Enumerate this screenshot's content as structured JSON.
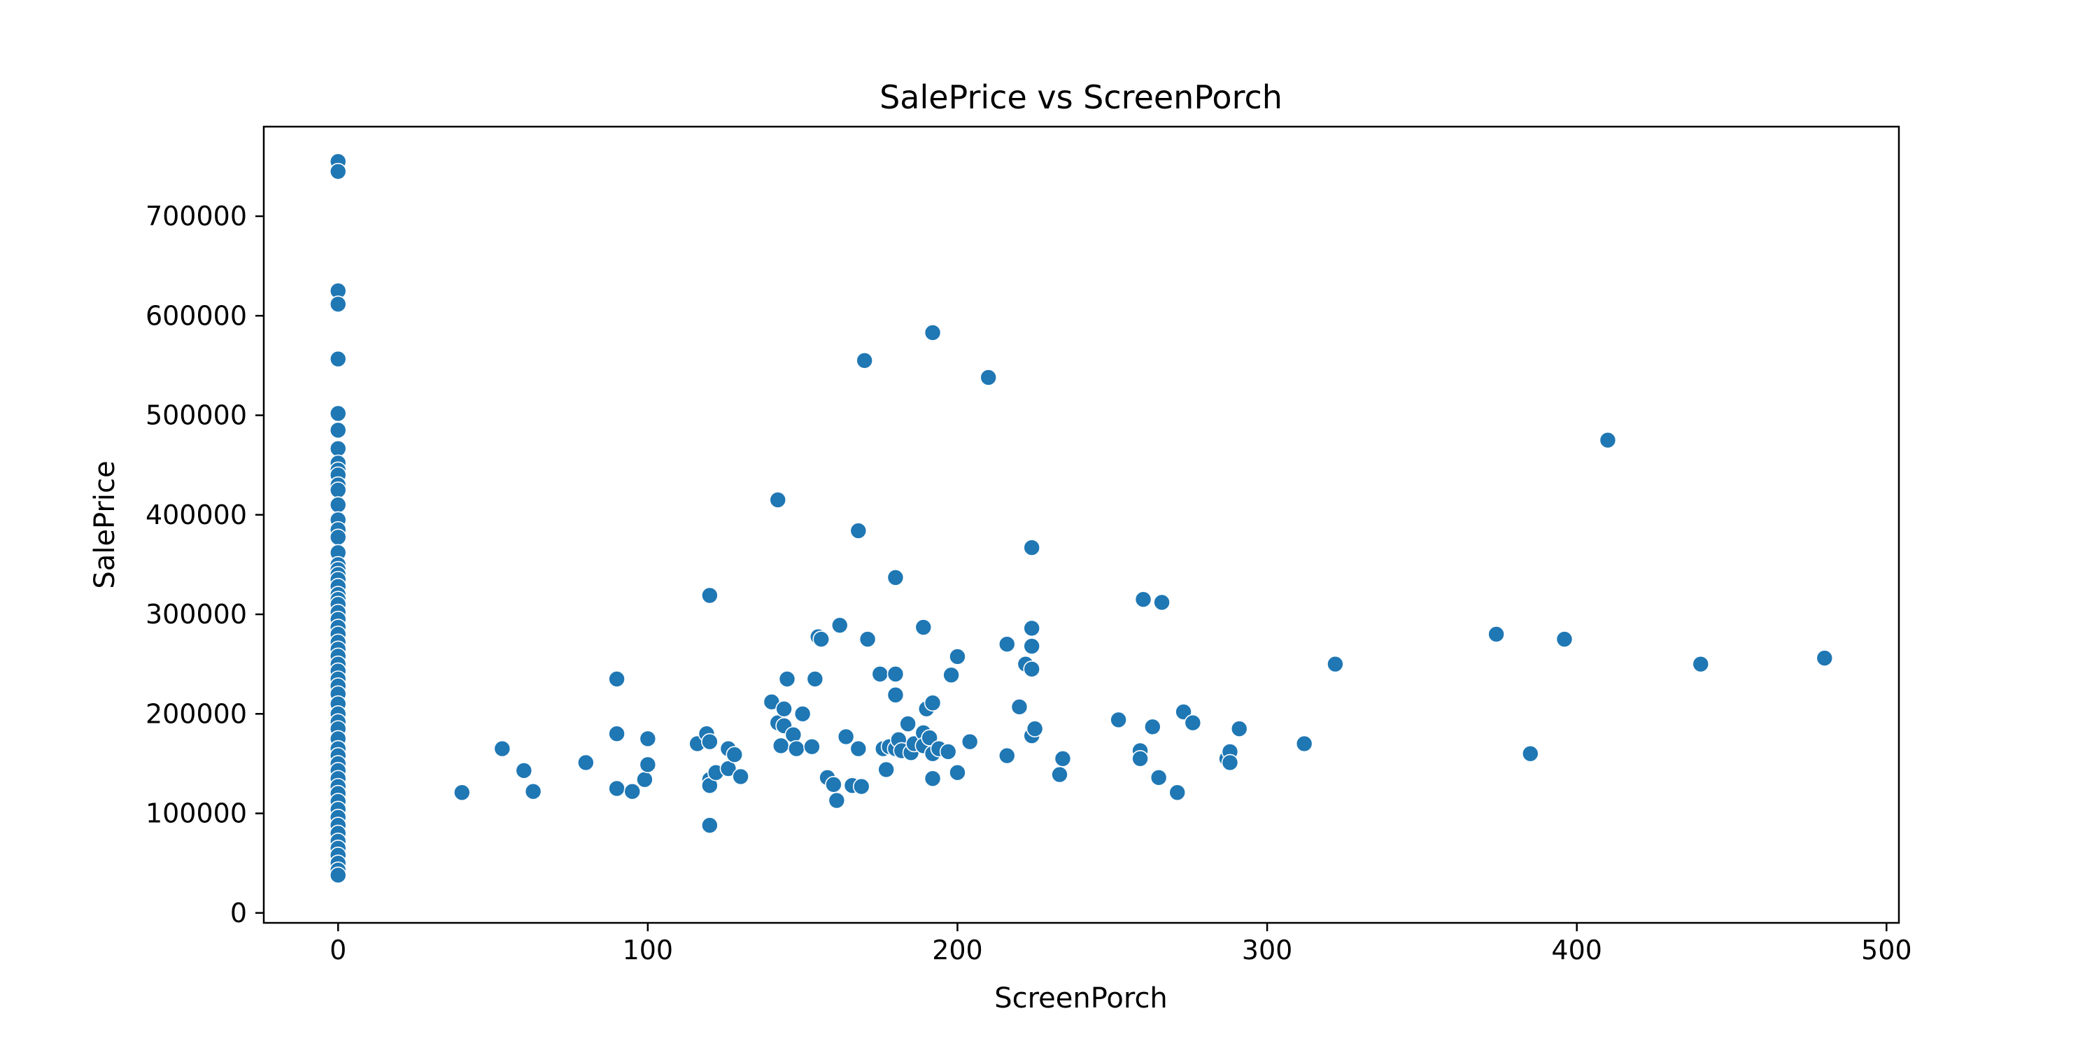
{
  "chart_data": {
    "type": "scatter",
    "title": "SalePrice vs ScreenPorch",
    "xlabel": "ScreenPorch",
    "ylabel": "SalePrice",
    "xlim": [
      -24,
      504
    ],
    "ylim": [
      -10000,
      790000
    ],
    "xticks": [
      0,
      100,
      200,
      300,
      400,
      500
    ],
    "xtick_labels": [
      "0",
      "100",
      "200",
      "300",
      "400",
      "500"
    ],
    "yticks": [
      0,
      100000,
      200000,
      300000,
      400000,
      500000,
      600000,
      700000
    ],
    "ytick_labels": [
      "0",
      "100000",
      "200000",
      "300000",
      "400000",
      "500000",
      "600000",
      "700000"
    ],
    "grid": false,
    "point_color": "#1f77b4",
    "point_edge_color": "#ffffff",
    "series": [
      {
        "points": [
          [
            0,
            755000
          ],
          [
            0,
            745000
          ],
          [
            0,
            625000
          ],
          [
            0,
            611657
          ],
          [
            0,
            556581
          ],
          [
            0,
            501837
          ],
          [
            0,
            485000
          ],
          [
            0,
            466500
          ],
          [
            0,
            451950
          ],
          [
            0,
            445000
          ],
          [
            0,
            440000
          ],
          [
            0,
            430000
          ],
          [
            0,
            424870
          ],
          [
            0,
            410000
          ],
          [
            0,
            395000
          ],
          [
            0,
            385000
          ],
          [
            0,
            377500
          ],
          [
            0,
            362000
          ],
          [
            0,
            350000
          ],
          [
            0,
            345000
          ],
          [
            0,
            340000
          ],
          [
            0,
            335000
          ],
          [
            0,
            328000
          ],
          [
            0,
            320000
          ],
          [
            0,
            315000
          ],
          [
            0,
            310000
          ],
          [
            0,
            302000
          ],
          [
            0,
            295000
          ],
          [
            0,
            287000
          ],
          [
            0,
            280000
          ],
          [
            0,
            272000
          ],
          [
            0,
            265000
          ],
          [
            0,
            258000
          ],
          [
            0,
            250000
          ],
          [
            0,
            243000
          ],
          [
            0,
            235000
          ],
          [
            0,
            228000
          ],
          [
            0,
            220000
          ],
          [
            0,
            210000
          ],
          [
            0,
            200000
          ],
          [
            0,
            192000
          ],
          [
            0,
            185000
          ],
          [
            0,
            175000
          ],
          [
            0,
            165000
          ],
          [
            0,
            158000
          ],
          [
            0,
            150000
          ],
          [
            0,
            143000
          ],
          [
            0,
            135000
          ],
          [
            0,
            127000
          ],
          [
            0,
            120000
          ],
          [
            0,
            112000
          ],
          [
            0,
            104000
          ],
          [
            0,
            96000
          ],
          [
            0,
            88000
          ],
          [
            0,
            80000
          ],
          [
            0,
            72000
          ],
          [
            0,
            65000
          ],
          [
            0,
            58000
          ],
          [
            0,
            50000
          ],
          [
            0,
            43000
          ],
          [
            0,
            37900
          ],
          [
            40,
            121000
          ],
          [
            53,
            165000
          ],
          [
            60,
            143000
          ],
          [
            63,
            122000
          ],
          [
            80,
            151000
          ],
          [
            90,
            235000
          ],
          [
            90,
            180000
          ],
          [
            90,
            125000
          ],
          [
            95,
            122000
          ],
          [
            99,
            134000
          ],
          [
            100,
            175000
          ],
          [
            100,
            149000
          ],
          [
            116,
            170000
          ],
          [
            119,
            180000
          ],
          [
            120,
            319000
          ],
          [
            120,
            172000
          ],
          [
            120,
            134000
          ],
          [
            120,
            128000
          ],
          [
            120,
            88000
          ],
          [
            122,
            141000
          ],
          [
            126,
            165000
          ],
          [
            126,
            145000
          ],
          [
            128,
            159000
          ],
          [
            130,
            137000
          ],
          [
            140,
            212000
          ],
          [
            142,
            415000
          ],
          [
            142,
            191000
          ],
          [
            143,
            168000
          ],
          [
            144,
            205000
          ],
          [
            144,
            188000
          ],
          [
            145,
            235000
          ],
          [
            147,
            179000
          ],
          [
            148,
            165000
          ],
          [
            150,
            200000
          ],
          [
            153,
            167000
          ],
          [
            154,
            235000
          ],
          [
            155,
            277500
          ],
          [
            156,
            275000
          ],
          [
            158,
            136000
          ],
          [
            160,
            129000
          ],
          [
            161,
            113000
          ],
          [
            162,
            289000
          ],
          [
            164,
            177000
          ],
          [
            166,
            128000
          ],
          [
            168,
            165000
          ],
          [
            168,
            384000
          ],
          [
            169,
            127000
          ],
          [
            170,
            555000
          ],
          [
            171,
            275000
          ],
          [
            175,
            240000
          ],
          [
            176,
            165000
          ],
          [
            177,
            144000
          ],
          [
            178,
            167000
          ],
          [
            180,
            165000
          ],
          [
            180,
            240000
          ],
          [
            180,
            219000
          ],
          [
            180,
            337000
          ],
          [
            181,
            174000
          ],
          [
            182,
            163000
          ],
          [
            184,
            190000
          ],
          [
            185,
            161000
          ],
          [
            186,
            170000
          ],
          [
            189,
            287000
          ],
          [
            189,
            181000
          ],
          [
            189,
            168000
          ],
          [
            190,
            205000
          ],
          [
            191,
            176000
          ],
          [
            192,
            583000
          ],
          [
            192,
            211000
          ],
          [
            192,
            160000
          ],
          [
            192,
            135000
          ],
          [
            194,
            165000
          ],
          [
            197,
            162000
          ],
          [
            198,
            239000
          ],
          [
            200,
            257500
          ],
          [
            200,
            141000
          ],
          [
            204,
            172000
          ],
          [
            210,
            538000
          ],
          [
            216,
            270000
          ],
          [
            216,
            158000
          ],
          [
            220,
            207000
          ],
          [
            222,
            250000
          ],
          [
            224,
            367000
          ],
          [
            224,
            286000
          ],
          [
            224,
            268000
          ],
          [
            224,
            245000
          ],
          [
            224,
            178000
          ],
          [
            225,
            185000
          ],
          [
            233,
            139000
          ],
          [
            234,
            155000
          ],
          [
            252,
            194000
          ],
          [
            259,
            163000
          ],
          [
            259,
            155000
          ],
          [
            260,
            315000
          ],
          [
            263,
            187000
          ],
          [
            265,
            136000
          ],
          [
            266,
            312000
          ],
          [
            271,
            121000
          ],
          [
            273,
            202000
          ],
          [
            276,
            191000
          ],
          [
            287,
            155000
          ],
          [
            288,
            162000
          ],
          [
            288,
            151000
          ],
          [
            291,
            185000
          ],
          [
            312,
            170000
          ],
          [
            322,
            250000
          ],
          [
            374,
            280000
          ],
          [
            385,
            160000
          ],
          [
            396,
            275000
          ],
          [
            410,
            475000
          ],
          [
            440,
            250000
          ],
          [
            480,
            256000
          ]
        ]
      }
    ]
  }
}
